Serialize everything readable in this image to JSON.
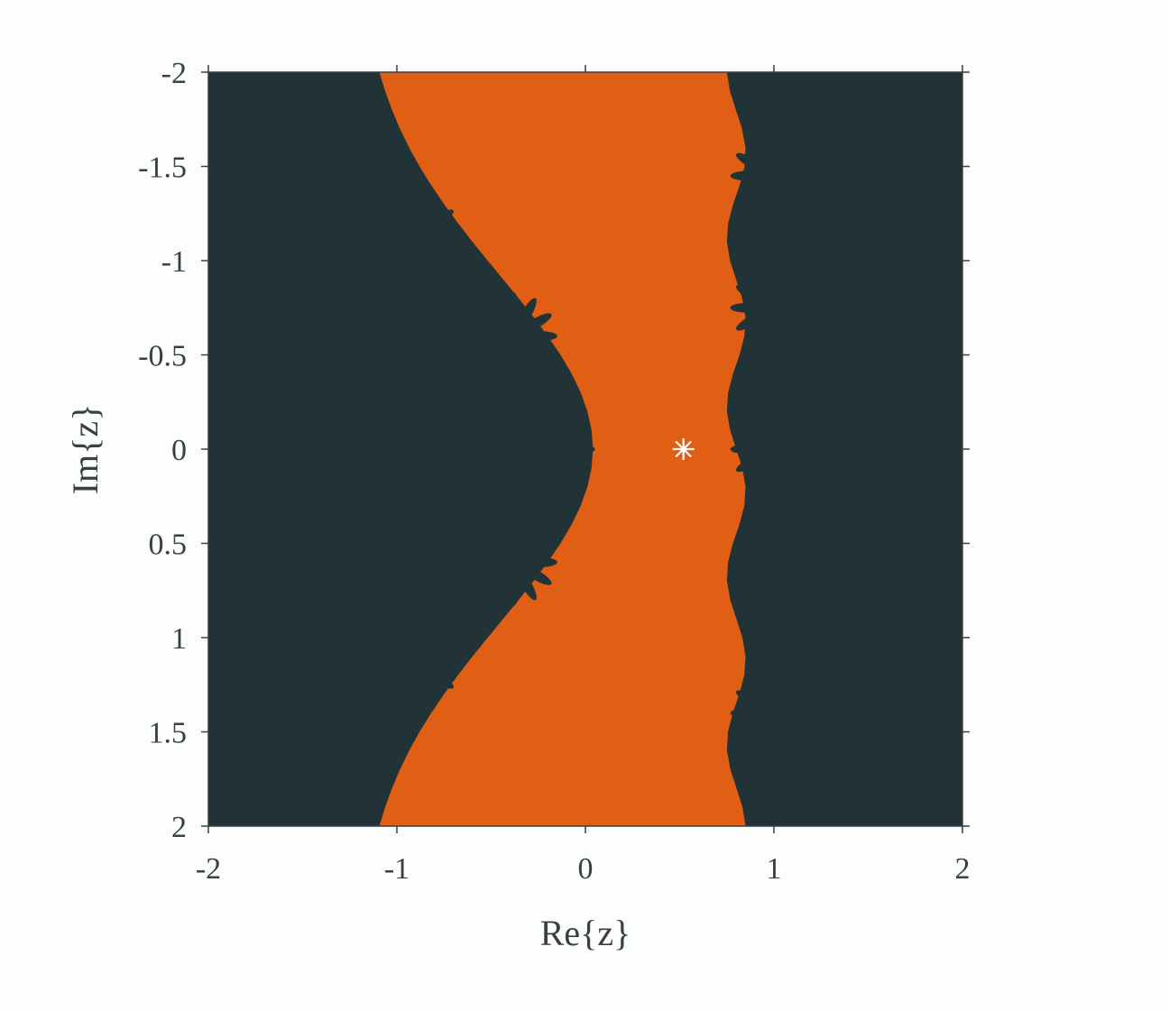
{
  "chart_data": {
    "type": "heatmap",
    "title": "",
    "xlabel": "Re{z}",
    "ylabel": "Im{z}",
    "xlim": [
      -2,
      2
    ],
    "ylim": [
      -2,
      2
    ],
    "y_axis_direction": "reversed",
    "x_ticks": [
      -2,
      -1,
      0,
      1,
      2
    ],
    "x_tick_labels": [
      "-2",
      "-1",
      "0",
      "1",
      "2"
    ],
    "y_ticks": [
      -2,
      -1.5,
      -1,
      -0.5,
      0,
      0.5,
      1,
      1.5,
      2
    ],
    "y_tick_labels": [
      "-2",
      "-1.5",
      "-1",
      "-0.5",
      "0",
      "0.5",
      "1",
      "1.5",
      "2"
    ],
    "grid": false,
    "colors": {
      "basin_converging": "#e05f14",
      "basin_diverging": "#213337",
      "marker": "#ffffff",
      "axis": "#3a3f44"
    },
    "marker_point": {
      "x": 0.52,
      "y": 0,
      "symbol": "asterisk"
    },
    "series": [
      {
        "values": [
          {
            "x": [
              -1.21,
              0.8
            ],
            "y": [
              -2,
              2
            ]
          }
        ]
      }
    ],
    "dark_lobes": [
      {
        "x": -1.6,
        "y": -1.8
      },
      {
        "x": -0.9,
        "y": -1.15
      },
      {
        "x": -0.38,
        "y": -0.6
      },
      {
        "x": -0.18,
        "y": 0
      },
      {
        "x": -0.38,
        "y": 0.6
      },
      {
        "x": -0.9,
        "y": 1.15
      },
      {
        "x": -1.6,
        "y": 1.8
      },
      {
        "x": 1.0,
        "y": -1.45
      },
      {
        "x": 1.0,
        "y": -0.75
      },
      {
        "x": 1.0,
        "y": 0
      },
      {
        "x": 1.0,
        "y": 0.65
      },
      {
        "x": 1.0,
        "y": 1.4
      }
    ]
  }
}
